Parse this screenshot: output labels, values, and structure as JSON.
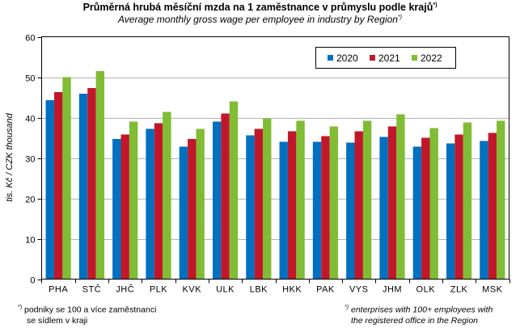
{
  "chart_data": {
    "type": "bar",
    "title": "Průměrná hrubá měsíční mzda na 1 zaměstnance v průmyslu  podle krajů",
    "title_marker": "*)",
    "subtitle": "Average  monthly  gross wage  per employee  in industry  by Region",
    "subtitle_marker": "*)",
    "xlabel": "",
    "ylabel": "tis. Kč / CZK thousand",
    "ylim": [
      0,
      60
    ],
    "yticks": [
      0,
      10,
      20,
      30,
      40,
      50,
      60
    ],
    "grid": true,
    "legend_position": "top-right",
    "categories": [
      "PHA",
      "STČ",
      "JHČ",
      "PLK",
      "KVK",
      "ULK",
      "LBK",
      "HKK",
      "PAK",
      "VYS",
      "JHM",
      "OLK",
      "ZLK",
      "MSK"
    ],
    "series": [
      {
        "name": "2020",
        "color": "#0070c0",
        "values": [
          44.3,
          45.9,
          34.7,
          37.2,
          32.8,
          39.0,
          35.6,
          34.0,
          34.0,
          33.8,
          35.2,
          32.8,
          33.6,
          34.2
        ]
      },
      {
        "name": "2021",
        "color": "#c0182a",
        "values": [
          46.3,
          47.3,
          35.8,
          38.6,
          34.7,
          41.0,
          37.2,
          36.6,
          35.4,
          36.6,
          37.8,
          35.0,
          35.8,
          36.2
        ]
      },
      {
        "name": "2022",
        "color": "#80bc34",
        "values": [
          50.0,
          51.5,
          39.0,
          41.4,
          37.2,
          44.0,
          39.8,
          39.2,
          37.8,
          39.2,
          40.8,
          37.4,
          38.8,
          39.2
        ]
      }
    ]
  },
  "footnotes": {
    "left_marker": "*)",
    "left_line1": "podniky se 100 a více zaměstnanci",
    "left_line2": "se sídlem  v kraji",
    "right_marker": "*)",
    "right_line1": "enterprises with 100+ employees with",
    "right_line2": "the registered office in the Region"
  }
}
